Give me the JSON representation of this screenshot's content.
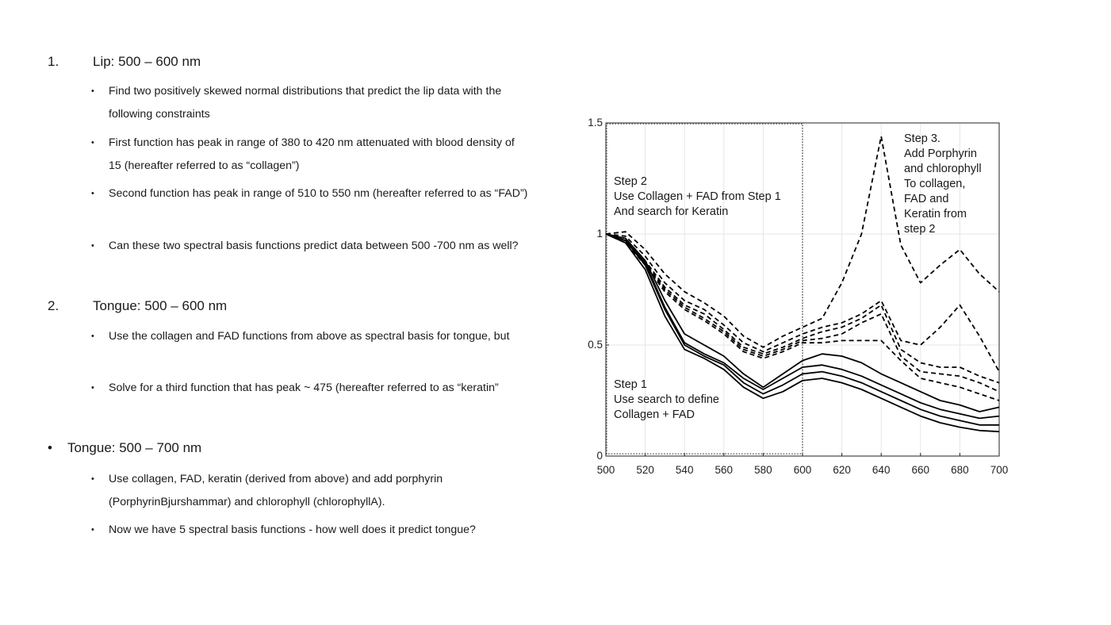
{
  "outline": [
    {
      "marker": "1.",
      "label": "Lip: 500 – 600 nm",
      "bullets": [
        "Find two positively skewed normal distributions that predict the lip data with the following constraints",
        "First function has peak in range of 380 to 420 nm attenuated with blood density of 15 (hereafter referred to as “collagen”)",
        "Second function has peak in range of 510 to 550 nm (hereafter referred to as “FAD”)",
        "Can these two spectral basis functions predict data between 500 -700 nm as well?"
      ]
    },
    {
      "marker": "2.",
      "label": "Tongue: 500 – 600 nm",
      "bullets": [
        "Use the collagen and FAD functions from above as spectral basis for tongue, but",
        "Solve for a third function that has peak ~ 475 (hereafter referred to as “keratin”"
      ]
    },
    {
      "marker": "•",
      "label": "Tongue: 500 – 700 nm",
      "bullets": [
        "Use collagen, FAD, keratin (derived from above) and add porphyrin (PorphyrinBjurshammar) and chlorophyll (chlorophyllA).",
        "Now we have 5 spectral basis functions - how well does it predict tongue?"
      ]
    }
  ],
  "chart_data": {
    "type": "line",
    "xlim": [
      500,
      700
    ],
    "ylim": [
      0,
      1.5
    ],
    "x_ticks": [
      "500",
      "520",
      "540",
      "560",
      "580",
      "600",
      "620",
      "640",
      "660",
      "680",
      "700"
    ],
    "y_ticks": [
      "0",
      "0.5",
      "1",
      "1.5"
    ],
    "grid": true,
    "annotations": {
      "step1": [
        "Step 1",
        "Use search to define",
        "Collagen + FAD"
      ],
      "step2": [
        "Step 2",
        "Use Collagen + FAD from Step 1",
        "And search for Keratin"
      ],
      "step3": [
        "Step 3.",
        "Add Porphyrin",
        "and chlorophyll",
        "To collagen,",
        "FAD and",
        "Keratin from",
        "step 2"
      ]
    },
    "box": {
      "x0": 500,
      "x1": 600,
      "y0": 0.01,
      "y1": 1.5
    },
    "x": [
      500,
      510,
      520,
      530,
      540,
      550,
      560,
      570,
      580,
      590,
      600,
      610,
      620,
      630,
      640,
      650,
      660,
      670,
      680,
      690,
      700
    ],
    "series": [
      {
        "style": "solid",
        "values": [
          1.0,
          0.96,
          0.84,
          0.63,
          0.48,
          0.44,
          0.39,
          0.31,
          0.26,
          0.29,
          0.34,
          0.35,
          0.33,
          0.3,
          0.26,
          0.22,
          0.18,
          0.15,
          0.13,
          0.115,
          0.11
        ]
      },
      {
        "style": "solid",
        "values": [
          1.0,
          0.97,
          0.86,
          0.66,
          0.5,
          0.45,
          0.41,
          0.33,
          0.28,
          0.32,
          0.37,
          0.38,
          0.36,
          0.33,
          0.29,
          0.25,
          0.21,
          0.18,
          0.16,
          0.14,
          0.14
        ]
      },
      {
        "style": "solid",
        "values": [
          1.0,
          0.97,
          0.87,
          0.67,
          0.51,
          0.46,
          0.42,
          0.35,
          0.3,
          0.35,
          0.4,
          0.41,
          0.39,
          0.36,
          0.32,
          0.28,
          0.24,
          0.21,
          0.19,
          0.17,
          0.18
        ]
      },
      {
        "style": "solid",
        "values": [
          1.0,
          0.98,
          0.88,
          0.7,
          0.55,
          0.5,
          0.45,
          0.37,
          0.31,
          0.37,
          0.43,
          0.46,
          0.45,
          0.42,
          0.37,
          0.33,
          0.29,
          0.25,
          0.23,
          0.2,
          0.22
        ]
      },
      {
        "style": "dashed",
        "values": [
          1.0,
          1.01,
          0.93,
          0.82,
          0.74,
          0.69,
          0.63,
          0.54,
          0.49,
          0.54,
          0.58,
          0.62,
          0.78,
          1.0,
          1.44,
          0.95,
          0.78,
          0.86,
          0.93,
          0.82,
          0.74
        ]
      },
      {
        "style": "dashed",
        "values": [
          1.0,
          0.99,
          0.9,
          0.78,
          0.7,
          0.66,
          0.59,
          0.51,
          0.47,
          0.51,
          0.55,
          0.58,
          0.6,
          0.64,
          0.7,
          0.52,
          0.5,
          0.58,
          0.68,
          0.54,
          0.38
        ]
      },
      {
        "style": "dashed",
        "values": [
          1.0,
          0.98,
          0.88,
          0.76,
          0.68,
          0.64,
          0.57,
          0.49,
          0.46,
          0.49,
          0.53,
          0.56,
          0.58,
          0.62,
          0.68,
          0.48,
          0.42,
          0.4,
          0.4,
          0.36,
          0.33
        ]
      },
      {
        "style": "dashed",
        "values": [
          1.0,
          0.97,
          0.87,
          0.75,
          0.67,
          0.62,
          0.56,
          0.48,
          0.45,
          0.48,
          0.52,
          0.53,
          0.55,
          0.6,
          0.64,
          0.45,
          0.38,
          0.37,
          0.36,
          0.33,
          0.29
        ]
      },
      {
        "style": "dashed",
        "values": [
          1.0,
          0.96,
          0.86,
          0.74,
          0.66,
          0.61,
          0.55,
          0.47,
          0.44,
          0.47,
          0.51,
          0.51,
          0.52,
          0.52,
          0.52,
          0.43,
          0.35,
          0.33,
          0.31,
          0.28,
          0.25
        ]
      }
    ]
  }
}
